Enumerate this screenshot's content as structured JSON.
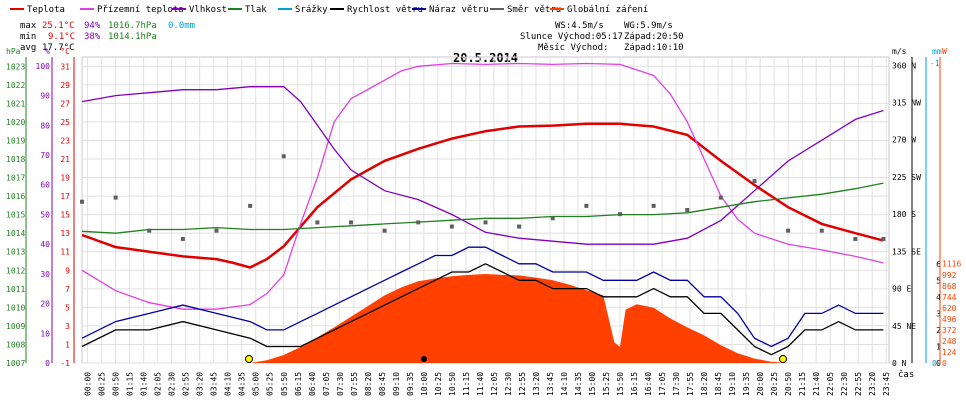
{
  "legend": [
    {
      "label": "Teplota",
      "color": "#e00000"
    },
    {
      "label": "Přízemní teplota",
      "color": "#e040e0"
    },
    {
      "label": "Vlhkost",
      "color": "#8000c0"
    },
    {
      "label": "Tlak",
      "color": "#208020"
    },
    {
      "label": "Srážky",
      "color": "#00a0d0"
    },
    {
      "label": "Rychlost větru",
      "color": "#000000"
    },
    {
      "label": "Náraz větru",
      "color": "#0000a0"
    },
    {
      "label": "Směr větru",
      "color": "#606060"
    },
    {
      "label": "Globální záření",
      "color": "#ff4000"
    }
  ],
  "stats": {
    "max_label": "max",
    "max_temp": "25.1°C",
    "max_hum": "94%",
    "max_press": "1016.7hPa",
    "max_rain": "0.0mm",
    "min_label": "min",
    "min_temp": "9.1°C",
    "min_hum": "38%",
    "min_press": "1014.1hPa",
    "avg_label": "avg",
    "avg_temp": "17.7°C"
  },
  "info": {
    "ws": "WS:4.5m/s",
    "wg": "WG:5.9m/s",
    "sun_rise": "Slunce Východ:05:17",
    "sun_set": "Západ:20:50",
    "moon_rise": "Měsíc Východ:",
    "moon_set": "Západ:10:10"
  },
  "chart_data": {
    "type": "line",
    "title": "20.5.2014",
    "xlabel": "čas",
    "axes": {
      "hPa": {
        "label": "hPa",
        "ticks": [
          1007,
          1008,
          1009,
          1010,
          1011,
          1012,
          1013,
          1014,
          1015,
          1016,
          1017,
          1018,
          1019,
          1020,
          1021,
          1022,
          1023
        ],
        "range": [
          1007,
          1023.5
        ],
        "color": "#208020"
      },
      "pct": {
        "label": "%",
        "ticks": [
          0,
          10,
          20,
          30,
          40,
          50,
          60,
          70,
          80,
          90,
          100
        ],
        "range": [
          0,
          103
        ],
        "color": "#8000c0"
      },
      "degC": {
        "label": "°C",
        "ticks": [
          -1,
          1,
          3,
          5,
          7,
          9,
          11,
          13,
          15,
          17,
          19,
          21,
          23,
          25,
          27,
          29,
          31
        ],
        "range": [
          -1,
          32
        ],
        "color": "#e00000"
      },
      "wdir": {
        "label": "m/s",
        "ticks": [
          0,
          45,
          90,
          135,
          180,
          225,
          270,
          315,
          360
        ],
        "tick_labels": [
          "N",
          "NE",
          "E",
          "SE",
          "S",
          "SW",
          "W",
          "NW",
          "N"
        ],
        "range": [
          0,
          370
        ],
        "color": "#000000"
      },
      "ms": {
        "ticks": [
          0,
          1,
          2,
          3,
          4,
          5,
          6
        ],
        "range": [
          0,
          18.5
        ],
        "color": "#000000"
      },
      "mm": {
        "label": "mm",
        "ticks": [
          0,
          1
        ],
        "tick_labels": [
          "0",
          "-1"
        ],
        "color": "#00a0d0"
      },
      "W": {
        "label": "W",
        "ticks": [
          0,
          124,
          248,
          372,
          496,
          620,
          744,
          868,
          992,
          1116
        ],
        "range": [
          0,
          3440
        ],
        "color": "#ff4000"
      }
    },
    "x_ticks": [
      "00:00",
      "00:25",
      "00:50",
      "01:15",
      "01:40",
      "02:05",
      "02:30",
      "02:55",
      "03:20",
      "03:45",
      "04:10",
      "04:35",
      "05:00",
      "05:25",
      "05:50",
      "06:15",
      "06:40",
      "07:05",
      "07:30",
      "07:55",
      "08:20",
      "08:45",
      "09:10",
      "09:35",
      "10:00",
      "10:25",
      "10:50",
      "11:15",
      "11:40",
      "12:05",
      "12:30",
      "12:55",
      "13:20",
      "13:45",
      "14:10",
      "14:35",
      "15:00",
      "15:25",
      "15:50",
      "16:15",
      "16:40",
      "17:05",
      "17:30",
      "17:55",
      "18:20",
      "18:45",
      "19:10",
      "19:35",
      "20:00",
      "20:25",
      "20:50",
      "21:15",
      "21:40",
      "22:05",
      "22:30",
      "22:55",
      "23:20",
      "23:45"
    ],
    "x_ticks_min": [
      10,
      35,
      60,
      85,
      110,
      135,
      160,
      185,
      210,
      235,
      260,
      285,
      310,
      335,
      360,
      385,
      410,
      435,
      460,
      485,
      510,
      535,
      560,
      585,
      610,
      635,
      660,
      685,
      710,
      735,
      760,
      785,
      810,
      835,
      860,
      885,
      910,
      935,
      960,
      985,
      1010,
      1035,
      1060,
      1085,
      1110,
      1135,
      1160,
      1185,
      1210,
      1235,
      1260,
      1285,
      1310,
      1335,
      1360,
      1385,
      1410,
      1435
    ],
    "series": [
      {
        "name": "Teplota",
        "axis": "degC",
        "color": "#e00000",
        "x": [
          0,
          60,
          120,
          180,
          240,
          270,
          300,
          330,
          360,
          390,
          420,
          480,
          540,
          600,
          660,
          720,
          780,
          840,
          900,
          960,
          1020,
          1080,
          1140,
          1200,
          1260,
          1320,
          1380,
          1430
        ],
        "y": [
          12.8,
          11.5,
          11.0,
          10.5,
          10.2,
          9.8,
          9.3,
          10.2,
          11.6,
          13.7,
          15.8,
          18.8,
          20.8,
          22.1,
          23.2,
          24.0,
          24.5,
          24.6,
          24.8,
          24.8,
          24.5,
          23.6,
          20.8,
          18.2,
          15.8,
          14.0,
          13.0,
          12.2
        ]
      },
      {
        "name": "Přízemní teplota",
        "axis": "degC",
        "color": "#e040e0",
        "x": [
          0,
          60,
          120,
          180,
          240,
          300,
          330,
          360,
          390,
          420,
          450,
          480,
          510,
          540,
          570,
          600,
          660,
          720,
          780,
          840,
          900,
          960,
          1020,
          1050,
          1080,
          1110,
          1140,
          1170,
          1200,
          1260,
          1320,
          1380,
          1430
        ],
        "y": [
          9.0,
          6.8,
          5.5,
          4.8,
          4.8,
          5.3,
          6.5,
          8.5,
          14.0,
          19.0,
          25.0,
          27.5,
          28.5,
          29.5,
          30.5,
          31.0,
          31.3,
          31.2,
          31.3,
          31.2,
          31.3,
          31.2,
          30.0,
          28.0,
          25.0,
          21.0,
          17.0,
          14.5,
          13.0,
          11.8,
          11.2,
          10.5,
          9.8
        ]
      },
      {
        "name": "Vlhkost",
        "axis": "pct",
        "color": "#8000c0",
        "x": [
          0,
          60,
          120,
          180,
          240,
          300,
          360,
          390,
          420,
          450,
          480,
          540,
          600,
          660,
          720,
          780,
          840,
          900,
          960,
          1020,
          1080,
          1140,
          1200,
          1260,
          1320,
          1380,
          1430
        ],
        "y": [
          88,
          90,
          91,
          92,
          92,
          93,
          93,
          88,
          80,
          72,
          65,
          58,
          55,
          50,
          44,
          42,
          41,
          40,
          40,
          40,
          42,
          48,
          58,
          68,
          75,
          82,
          85
        ]
      },
      {
        "name": "Tlak",
        "axis": "hPa",
        "color": "#208020",
        "x": [
          0,
          60,
          120,
          180,
          240,
          300,
          360,
          420,
          480,
          540,
          600,
          660,
          720,
          780,
          840,
          900,
          960,
          1020,
          1080,
          1140,
          1200,
          1260,
          1320,
          1380,
          1430
        ],
        "y": [
          1014.1,
          1014.0,
          1014.2,
          1014.2,
          1014.3,
          1014.2,
          1014.2,
          1014.3,
          1014.4,
          1014.5,
          1014.6,
          1014.7,
          1014.8,
          1014.8,
          1014.9,
          1014.9,
          1015.0,
          1015.0,
          1015.1,
          1015.4,
          1015.7,
          1015.9,
          1016.1,
          1016.4,
          1016.7
        ]
      },
      {
        "name": "Rychlost větru",
        "axis": "ms",
        "color": "#000000",
        "x": [
          0,
          60,
          120,
          180,
          240,
          300,
          330,
          360,
          390,
          420,
          450,
          480,
          510,
          540,
          570,
          600,
          630,
          660,
          690,
          720,
          750,
          780,
          810,
          840,
          870,
          900,
          930,
          960,
          990,
          1020,
          1050,
          1080,
          1110,
          1140,
          1170,
          1200,
          1230,
          1260,
          1290,
          1320,
          1350,
          1380,
          1410,
          1430
        ],
        "y": [
          1,
          2,
          2,
          2.5,
          2,
          1.5,
          1,
          1,
          1,
          1.5,
          2,
          2.5,
          3,
          3.5,
          4,
          4.5,
          5,
          5.5,
          5.5,
          6,
          5.5,
          5,
          5,
          4.5,
          4.5,
          4.5,
          4,
          4,
          4,
          4.5,
          4,
          4,
          3,
          3,
          2,
          1,
          0.5,
          1,
          2,
          2,
          2.5,
          2,
          2,
          2
        ]
      },
      {
        "name": "Náraz větru",
        "axis": "ms",
        "color": "#0000a0",
        "x": [
          0,
          60,
          120,
          180,
          240,
          300,
          330,
          360,
          390,
          420,
          450,
          480,
          510,
          540,
          570,
          600,
          630,
          660,
          690,
          720,
          750,
          780,
          810,
          840,
          870,
          900,
          930,
          960,
          990,
          1020,
          1050,
          1080,
          1110,
          1140,
          1170,
          1200,
          1230,
          1260,
          1290,
          1320,
          1350,
          1380,
          1410,
          1430
        ],
        "y": [
          1.5,
          2.5,
          3,
          3.5,
          3,
          2.5,
          2,
          2,
          2.5,
          3,
          3.5,
          4,
          4.5,
          5,
          5.5,
          6,
          6.5,
          6.5,
          7,
          7,
          6.5,
          6,
          6,
          5.5,
          5.5,
          5.5,
          5,
          5,
          5,
          5.5,
          5,
          5,
          4,
          4,
          3,
          1.5,
          1,
          1.5,
          3,
          3,
          3.5,
          3,
          3,
          3
        ]
      },
      {
        "name": "Směr větru",
        "axis": "wdir",
        "color": "#606060",
        "x": [
          0,
          60,
          120,
          180,
          240,
          300,
          360,
          420,
          480,
          540,
          600,
          660,
          720,
          780,
          840,
          900,
          960,
          1020,
          1080,
          1140,
          1200,
          1260,
          1320,
          1380,
          1430
        ],
        "y": [
          195,
          200,
          160,
          150,
          160,
          190,
          250,
          170,
          170,
          160,
          170,
          165,
          170,
          165,
          175,
          190,
          180,
          190,
          185,
          200,
          220,
          160,
          160,
          150,
          150
        ]
      },
      {
        "name": "Globální záření",
        "axis": "W",
        "color": "#ff4000",
        "x": [
          300,
          330,
          360,
          390,
          420,
          450,
          480,
          510,
          540,
          570,
          600,
          630,
          660,
          690,
          720,
          750,
          780,
          810,
          840,
          870,
          900,
          930,
          950,
          960,
          970,
          990,
          1020,
          1050,
          1080,
          1110,
          1140,
          1170,
          1200,
          1230,
          1260
        ],
        "y": [
          0,
          30,
          90,
          180,
          290,
          400,
          520,
          640,
          760,
          850,
          920,
          950,
          975,
          990,
          1000,
          990,
          985,
          960,
          930,
          880,
          820,
          760,
          230,
          180,
          600,
          660,
          620,
          500,
          400,
          310,
          200,
          110,
          50,
          15,
          0
        ]
      }
    ]
  }
}
